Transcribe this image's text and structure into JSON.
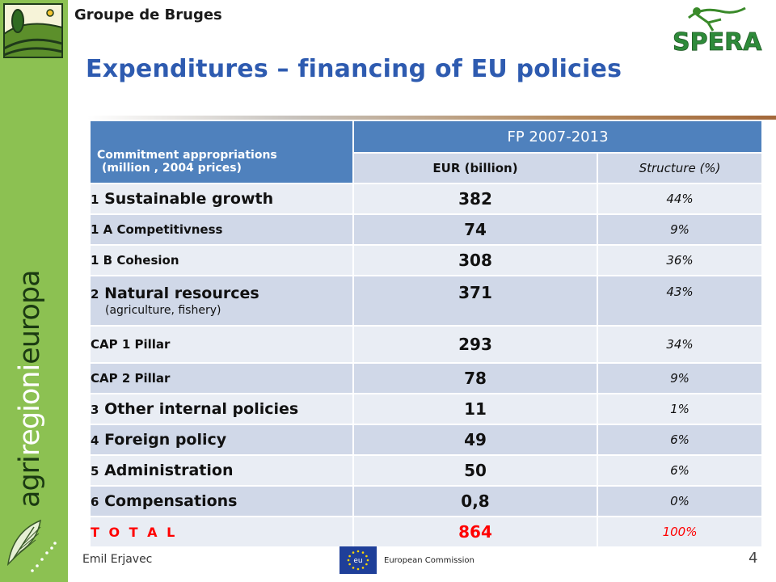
{
  "header": {
    "group_name": "Groupe de Bruges",
    "title": "Expenditures – financing of EU policies",
    "spera_logo_text": "SPERA"
  },
  "sidebar": {
    "brand_dark_1": "agri",
    "brand_light_1": "regioni",
    "brand_dark_2": "europa"
  },
  "table": {
    "header_left_line1": "Commitment appropriations",
    "header_left_line2": "(million , 2004 prices)",
    "header_period": "FP 2007-2013",
    "col_eur": "EUR (billion)",
    "col_structure": "Structure (%)",
    "rows": [
      {
        "num": "1",
        "label": "Sustainable growth",
        "value": "382",
        "pct": "44%"
      },
      {
        "label": "1 A Competitivness",
        "value": "74",
        "pct": "9%"
      },
      {
        "label": "1 B Cohesion",
        "value": "308",
        "pct": "36%"
      },
      {
        "num": "2",
        "label": "Natural resources",
        "note": "(agriculture, fishery)",
        "value": "371",
        "pct": "43%"
      },
      {
        "label": "CAP 1 Pillar",
        "value": "293",
        "pct": "34%"
      },
      {
        "label": "CAP 2 Pillar",
        "value": "78",
        "pct": "9%"
      },
      {
        "num": "3",
        "label": "Other internal policies",
        "value": "11",
        "pct": "1%"
      },
      {
        "num": "4",
        "label": "Foreign policy",
        "value": "49",
        "pct": "6%"
      },
      {
        "num": "5",
        "label": "Administration",
        "value": "50",
        "pct": "6%"
      },
      {
        "num": "6",
        "label": "Compensations",
        "value": "0,8",
        "pct": "0%"
      }
    ],
    "total": {
      "label": "T O T A L",
      "value": "864",
      "pct": "100%"
    }
  },
  "footer": {
    "author": "Emil Erjavec",
    "eu_flag_text": "eu",
    "commission": "European Commission",
    "page": "4"
  },
  "colors": {
    "sidebar_green": "#8cc152",
    "title_blue": "#2e5bb0",
    "header_blue": "#4f81bd",
    "row_light": "#e9edf4",
    "row_mid": "#d0d8e8",
    "total_red": "#ff0000"
  }
}
